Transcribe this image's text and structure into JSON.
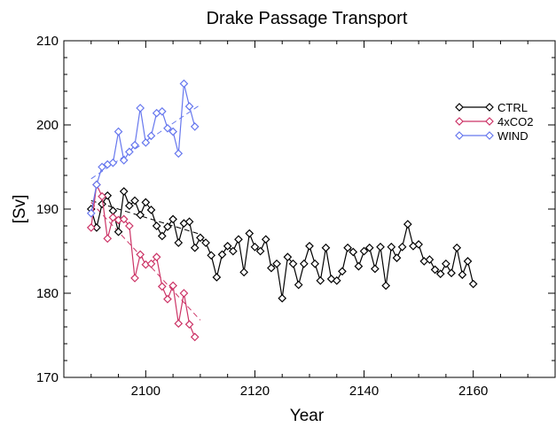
{
  "chart_data": {
    "type": "line",
    "title": "Drake Passage Transport",
    "xlabel": "Year",
    "ylabel": "[Sv]",
    "xlim": [
      2085,
      2175
    ],
    "ylim": [
      170,
      210
    ],
    "xticks": [
      2100,
      2120,
      2140,
      2160
    ],
    "yticks": [
      170,
      180,
      190,
      200,
      210
    ],
    "grid": false,
    "legend_position": "top-right",
    "series": [
      {
        "name": "CTRL",
        "color": "#000000",
        "x": [
          2090,
          2091,
          2092,
          2093,
          2094,
          2095,
          2096,
          2097,
          2098,
          2099,
          2100,
          2101,
          2102,
          2103,
          2104,
          2105,
          2106,
          2107,
          2108,
          2109,
          2110,
          2111,
          2112,
          2113,
          2114,
          2115,
          2116,
          2117,
          2118,
          2119,
          2120,
          2121,
          2122,
          2123,
          2124,
          2125,
          2126,
          2127,
          2128,
          2129,
          2130,
          2131,
          2132,
          2133,
          2134,
          2135,
          2136,
          2137,
          2138,
          2139,
          2140,
          2141,
          2142,
          2143,
          2144,
          2145,
          2146,
          2147,
          2148,
          2149,
          2150,
          2151,
          2152,
          2153,
          2154,
          2155,
          2156,
          2157,
          2158,
          2159,
          2160
        ],
        "y": [
          190.0,
          187.8,
          190.6,
          191.6,
          189.8,
          187.3,
          192.1,
          190.4,
          191.0,
          189.3,
          190.8,
          189.9,
          188.0,
          186.8,
          187.9,
          188.8,
          186.0,
          188.3,
          188.5,
          185.4,
          186.6,
          186.0,
          184.5,
          181.9,
          184.6,
          185.6,
          185.0,
          186.4,
          182.5,
          187.1,
          185.5,
          185.0,
          186.4,
          183.0,
          183.5,
          179.4,
          184.3,
          183.5,
          181.0,
          183.5,
          185.6,
          183.5,
          181.5,
          185.4,
          181.7,
          181.5,
          182.6,
          185.4,
          184.9,
          183.2,
          185.0,
          185.4,
          182.9,
          185.5,
          180.9,
          185.5,
          184.2,
          185.5,
          188.2,
          185.6,
          185.8,
          183.8,
          184.0,
          182.8,
          182.3,
          183.5,
          182.4,
          185.4,
          182.2,
          183.8,
          181.1
        ]
      },
      {
        "name": "4xCO2",
        "color": "#cc3366",
        "x": [
          2090,
          2091,
          2092,
          2093,
          2094,
          2095,
          2096,
          2097,
          2098,
          2099,
          2100,
          2101,
          2102,
          2103,
          2104,
          2105,
          2106,
          2107,
          2108,
          2109
        ],
        "y": [
          187.8,
          192.9,
          191.5,
          186.5,
          189.0,
          188.7,
          188.8,
          188.0,
          181.8,
          184.6,
          183.4,
          183.5,
          184.3,
          180.8,
          179.3,
          180.9,
          176.4,
          180.0,
          176.3,
          174.8
        ]
      },
      {
        "name": "WIND",
        "color": "#6677ee",
        "x": [
          2090,
          2091,
          2092,
          2093,
          2094,
          2095,
          2096,
          2097,
          2098,
          2099,
          2100,
          2101,
          2102,
          2103,
          2104,
          2105,
          2106,
          2107,
          2108,
          2109
        ],
        "y": [
          189.5,
          192.9,
          195.0,
          195.3,
          195.5,
          199.2,
          195.8,
          196.8,
          197.6,
          202.0,
          197.9,
          198.7,
          201.4,
          201.6,
          199.6,
          199.2,
          196.6,
          204.9,
          202.2,
          199.8
        ]
      }
    ],
    "trends": [
      {
        "series": "CTRL",
        "x": [
          2090,
          2110
        ],
        "y": [
          191.0,
          187.0
        ]
      },
      {
        "series": "4xCO2",
        "x": [
          2090,
          2110
        ],
        "y": [
          190.8,
          176.8
        ]
      },
      {
        "series": "WIND",
        "x": [
          2090,
          2110
        ],
        "y": [
          193.6,
          202.4
        ]
      }
    ]
  }
}
